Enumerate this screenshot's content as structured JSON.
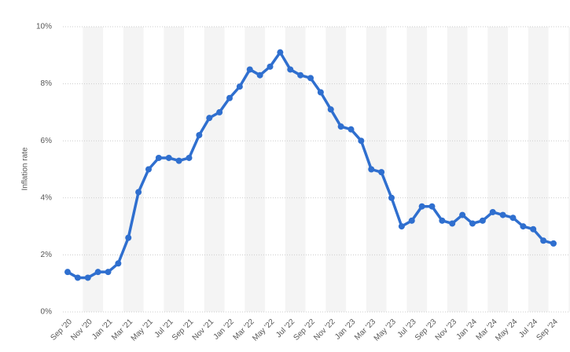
{
  "chart_data": {
    "type": "line",
    "ylabel": "Inflation rate",
    "categories": [
      "Sep '20",
      null,
      "Nov '20",
      null,
      "Jan '21",
      null,
      "Mar '21",
      null,
      "May '21",
      null,
      "Jul '21",
      null,
      "Sep '21",
      null,
      "Nov '21",
      null,
      "Jan '22",
      null,
      "Mar '22",
      null,
      "May '22",
      null,
      "Jul '22",
      null,
      "Sep '22",
      null,
      "Nov '22",
      null,
      "Jan '23",
      null,
      "Mar '23",
      null,
      "May '23",
      null,
      "Jul '23",
      null,
      "Sep '23",
      null,
      "Nov '23",
      null,
      "Jan '24",
      null,
      "Mar '24",
      null,
      "May '24",
      null,
      "Jul '24",
      null,
      "Sep '24"
    ],
    "series": [
      {
        "name": "Inflation rate",
        "color": "#2f6fcf",
        "values": [
          1.4,
          1.2,
          1.2,
          1.4,
          1.4,
          1.7,
          2.6,
          4.2,
          5.0,
          5.4,
          5.4,
          5.3,
          5.4,
          6.2,
          6.8,
          7.0,
          7.5,
          7.9,
          8.5,
          8.3,
          8.6,
          9.1,
          8.5,
          8.3,
          8.2,
          7.7,
          7.1,
          6.5,
          6.4,
          6.0,
          5.0,
          4.9,
          4.0,
          3.0,
          3.2,
          3.7,
          3.7,
          3.2,
          3.1,
          3.4,
          3.1,
          3.2,
          3.5,
          3.4,
          3.3,
          3.0,
          2.9,
          2.5,
          2.4
        ]
      }
    ],
    "ylim": [
      0,
      10
    ],
    "yticks": [
      {
        "value": 0,
        "label": "0%"
      },
      {
        "value": 2,
        "label": "2%"
      },
      {
        "value": 4,
        "label": "4%"
      },
      {
        "value": 6,
        "label": "6%"
      },
      {
        "value": 8,
        "label": "8%"
      },
      {
        "value": 10,
        "label": "10%"
      }
    ],
    "grid": true
  }
}
